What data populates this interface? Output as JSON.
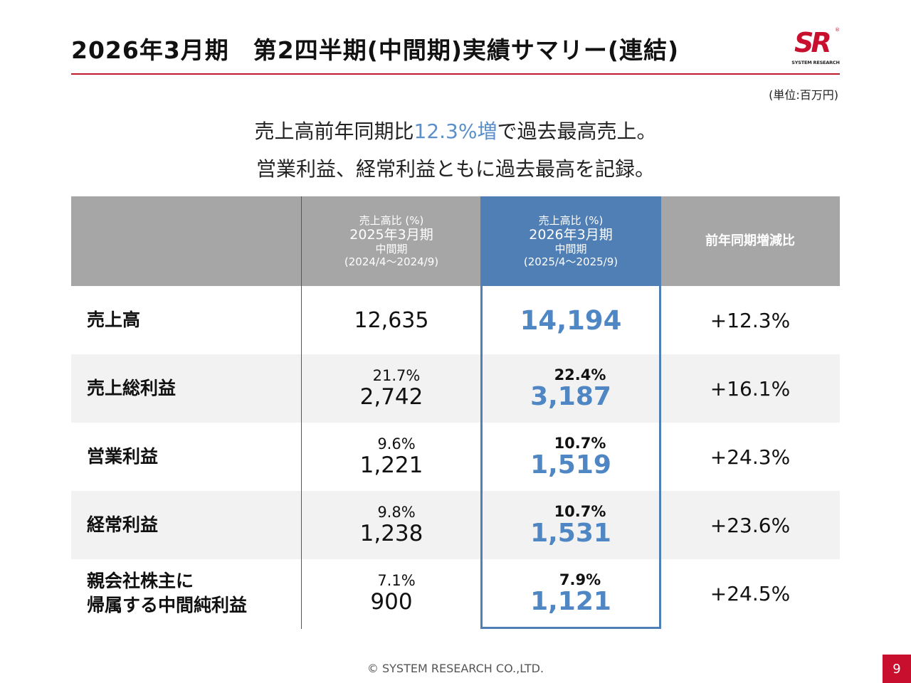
{
  "title": "2026年3月期　第2四半期(中間期)実績サマリー(連結)",
  "logo": {
    "mark": "SR",
    "reg": "®",
    "text": "SYSTEM RESEARCH"
  },
  "unit": "(単位:百万円)",
  "headline": {
    "line1_before": "売上高前年同期比",
    "line1_highlight": "12.3%増",
    "line1_after": "で過去最高売上。",
    "line2": "営業利益、経常利益ともに過去最高を記録。"
  },
  "colors": {
    "accent_red": "#c8102e",
    "accent_blue": "#4f7fb5",
    "highlight_text": "#5b8fc9"
  },
  "table": {
    "headers": {
      "prev": {
        "ratio": "売上高比 (%)",
        "period": "2025年3月期",
        "type": "中間期",
        "range": "(2024/4～2024/9)"
      },
      "cur": {
        "ratio": "売上高比 (%)",
        "period": "2026年3月期",
        "type": "中間期",
        "range": "(2025/4～2025/9)"
      },
      "yoy": "前年同期増減比"
    },
    "rows": [
      {
        "label": "売上高",
        "prev_pct": "",
        "prev": "12,635",
        "cur_pct": "",
        "cur": "14,194",
        "yoy": "+12.3%"
      },
      {
        "label": "売上総利益",
        "prev_pct": "21.7%",
        "prev": "2,742",
        "cur_pct": "22.4%",
        "cur": "3,187",
        "yoy": "+16.1%"
      },
      {
        "label": "営業利益",
        "prev_pct": "9.6%",
        "prev": "1,221",
        "cur_pct": "10.7%",
        "cur": "1,519",
        "yoy": "+24.3%"
      },
      {
        "label": "経常利益",
        "prev_pct": "9.8%",
        "prev": "1,238",
        "cur_pct": "10.7%",
        "cur": "1,531",
        "yoy": "+23.6%"
      },
      {
        "label_line1": "親会社株主に",
        "label_line2": "帰属する中間純利益",
        "prev_pct": "7.1%",
        "prev": "900",
        "cur_pct": "7.9%",
        "cur": "1,121",
        "yoy": "+24.5%"
      }
    ]
  },
  "footer": "© SYSTEM RESEARCH CO.,LTD.",
  "page_number": "9"
}
